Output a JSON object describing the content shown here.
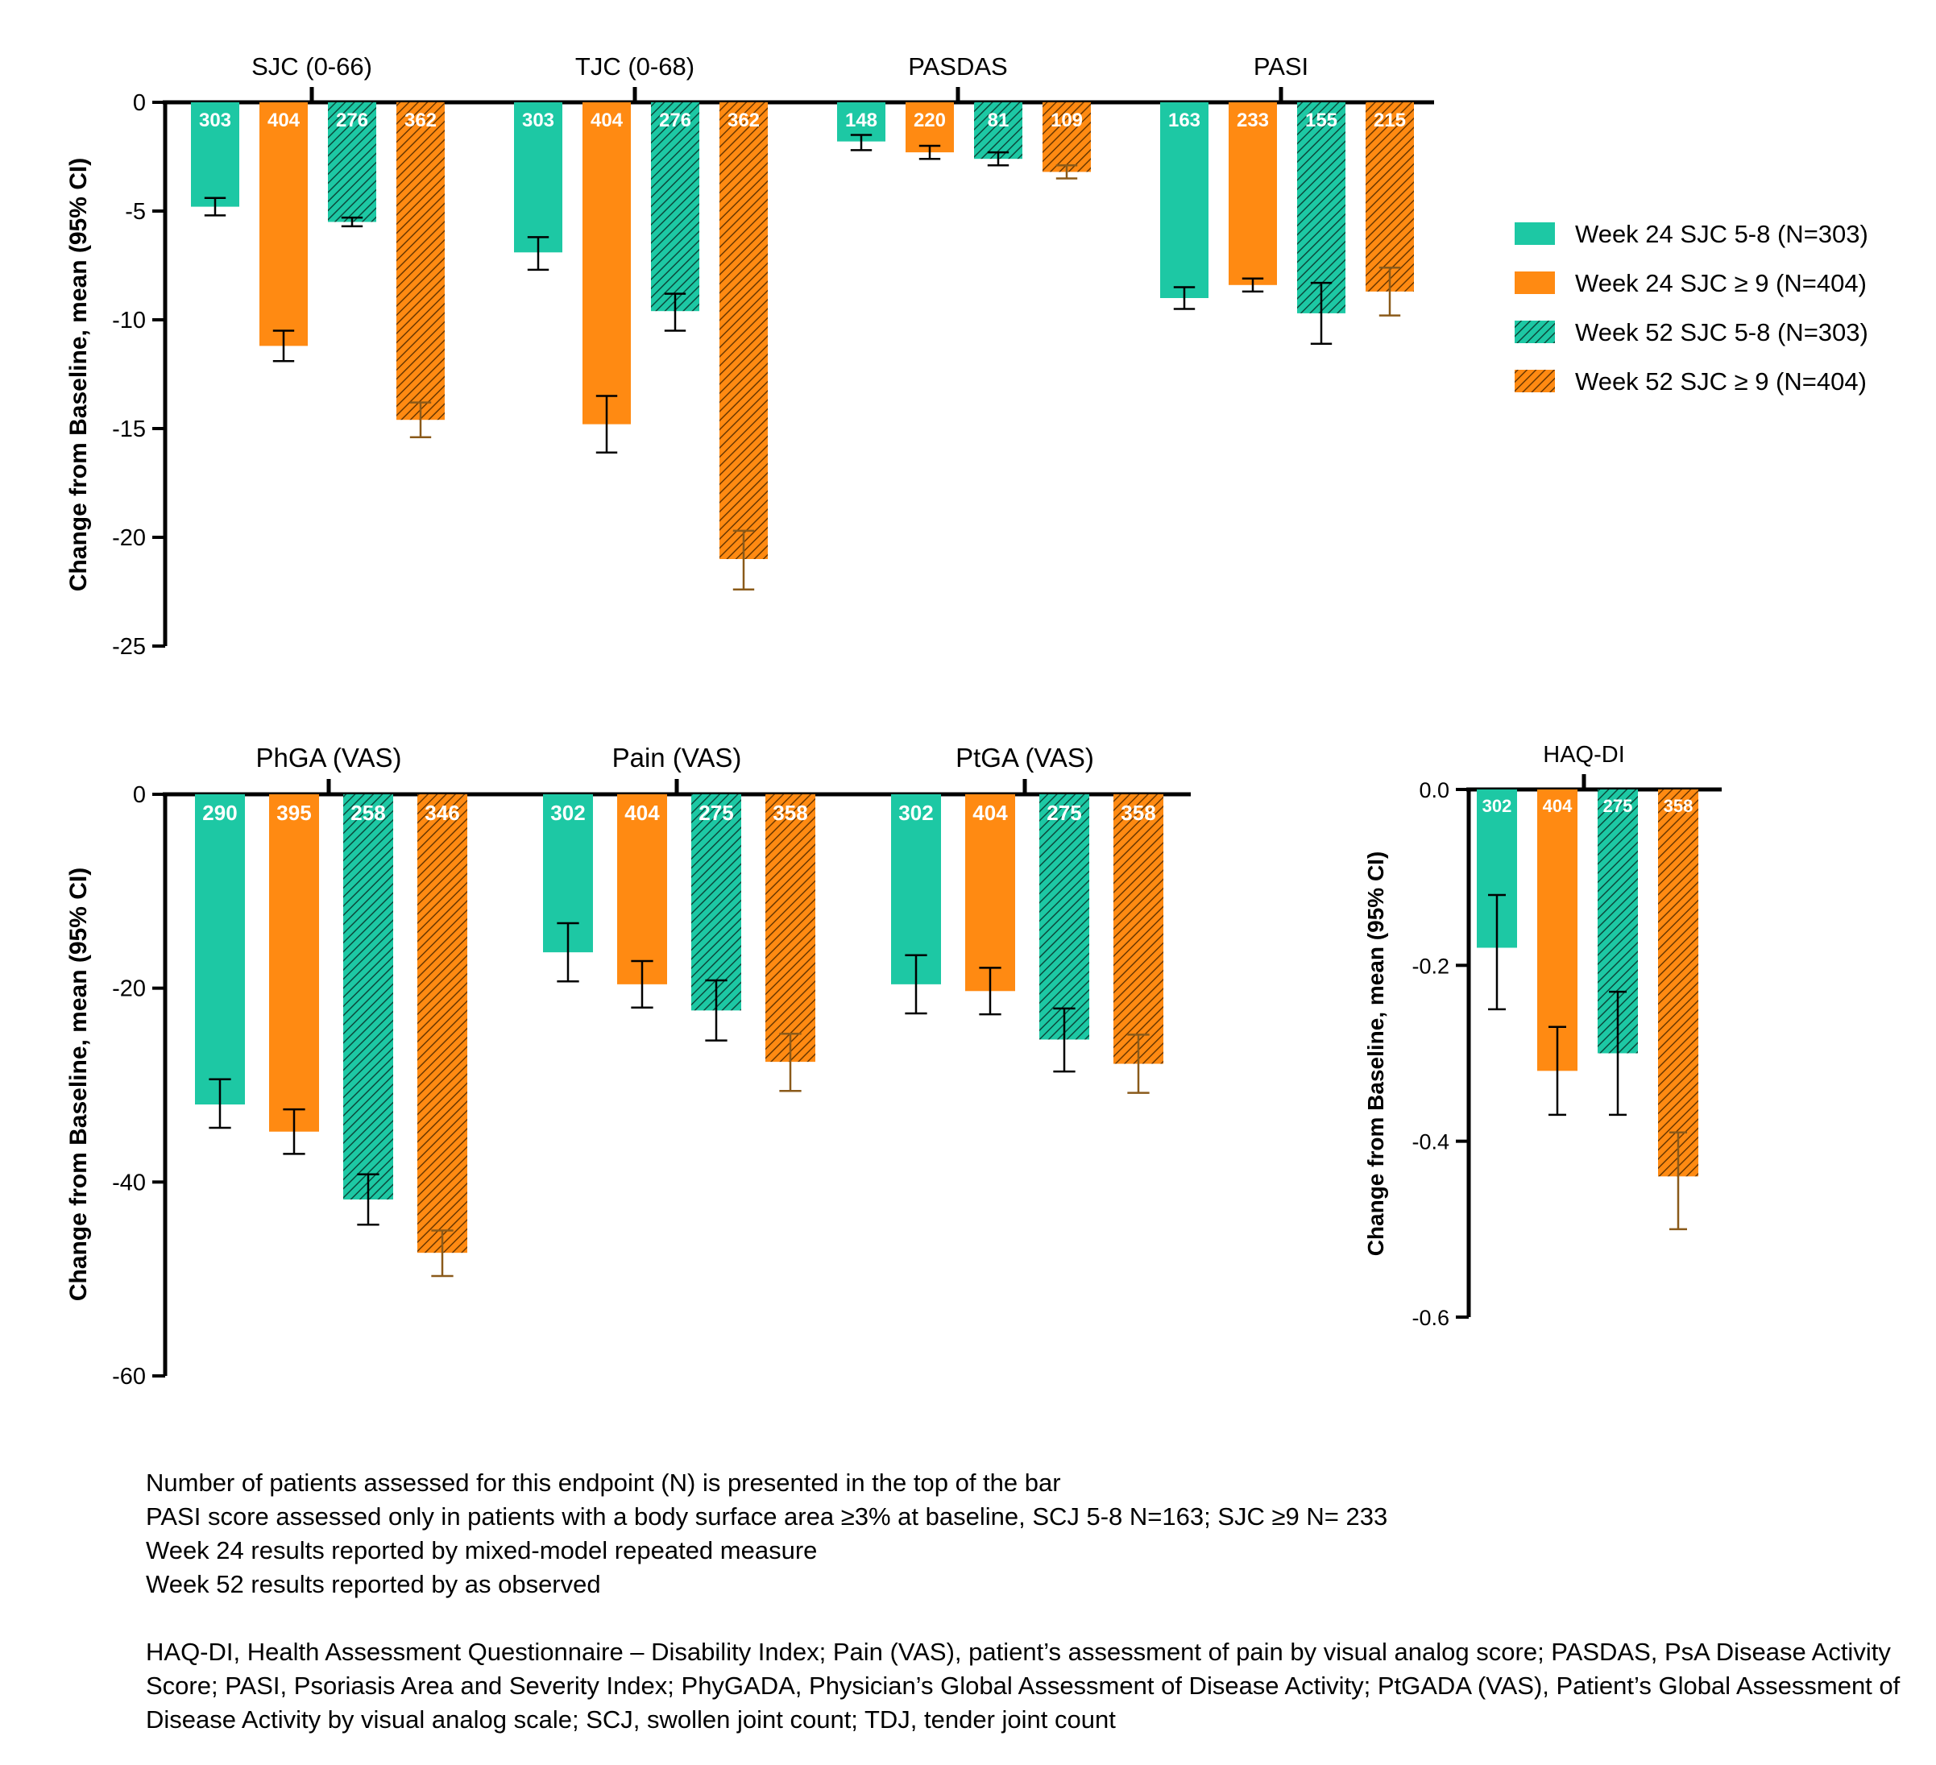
{
  "legend": [
    {
      "label": "Week 24 SJC 5-8 (N=303)",
      "color": "#1dc8a4",
      "hatched": false
    },
    {
      "label": "Week 24 SJC ≥ 9 (N=404)",
      "color": "#ff8a12",
      "hatched": false
    },
    {
      "label": "Week 52 SJC 5-8 (N=303)",
      "color": "#1dc8a4",
      "hatched": true
    },
    {
      "label": "Week 52 SJC ≥ 9 (N=404)",
      "color": "#ff8a12",
      "hatched": true
    }
  ],
  "colors": {
    "teal": "#1dc8a4",
    "orange": "#ff8a12",
    "teal_err": "#000000",
    "orange_err": "#8a5a1a"
  },
  "chart_data": [
    {
      "type": "bar",
      "ylabel": "Change from Baseline, mean  (95%  CI)",
      "ylim": [
        -25,
        0
      ],
      "yticks": [
        0,
        -5,
        -10,
        -15,
        -20,
        -25
      ],
      "ytick_labels": [
        "0",
        "-5",
        "-10",
        "-15",
        "-20",
        "-25"
      ],
      "groups": [
        {
          "name": "SJC (0-66)",
          "values": [
            -4.8,
            -11.2,
            -5.5,
            -14.6
          ],
          "ci_low": [
            -5.2,
            -11.9,
            -5.7,
            -15.4
          ],
          "ci_high": [
            -4.4,
            -10.5,
            -5.3,
            -13.8
          ],
          "n": [
            "303",
            "404",
            "276",
            "362"
          ]
        },
        {
          "name": "TJC (0-68)",
          "values": [
            -6.9,
            -14.8,
            -9.6,
            -21.0
          ],
          "ci_low": [
            -7.7,
            -16.1,
            -10.5,
            -22.4
          ],
          "ci_high": [
            -6.2,
            -13.5,
            -8.8,
            -19.7
          ],
          "n": [
            "303",
            "404",
            "276",
            "362"
          ]
        },
        {
          "name": "PASDAS",
          "values": [
            -1.8,
            -2.3,
            -2.6,
            -3.2
          ],
          "ci_low": [
            -2.2,
            -2.6,
            -2.9,
            -3.5
          ],
          "ci_high": [
            -1.5,
            -2.0,
            -2.3,
            -2.9
          ],
          "n": [
            "148",
            "220",
            "81",
            "109"
          ]
        },
        {
          "name": "PASI",
          "values": [
            -9.0,
            -8.4,
            -9.7,
            -8.7
          ],
          "ci_low": [
            -9.5,
            -8.7,
            -11.1,
            -9.8
          ],
          "ci_high": [
            -8.5,
            -8.1,
            -8.3,
            -7.6
          ],
          "n": [
            "163",
            "233",
            "155",
            "215"
          ]
        }
      ]
    },
    {
      "type": "bar",
      "ylabel": "Change from Baseline, mean  (95%  CI)",
      "ylim": [
        -60,
        0
      ],
      "yticks": [
        0,
        -20,
        -40,
        -60
      ],
      "ytick_labels": [
        "0",
        "-20",
        "-40",
        "-60"
      ],
      "groups": [
        {
          "name": "PhGA (VAS)",
          "values": [
            -32.0,
            -34.8,
            -41.8,
            -47.3
          ],
          "ci_low": [
            -34.4,
            -37.1,
            -44.4,
            -49.7
          ],
          "ci_high": [
            -29.4,
            -32.5,
            -39.2,
            -45.0
          ],
          "n": [
            "290",
            "395",
            "258",
            "346"
          ]
        },
        {
          "name": "Pain (VAS)",
          "values": [
            -16.3,
            -19.6,
            -22.3,
            -27.6
          ],
          "ci_low": [
            -19.3,
            -22.0,
            -25.4,
            -30.6
          ],
          "ci_high": [
            -13.3,
            -17.2,
            -19.2,
            -24.7
          ],
          "n": [
            "302",
            "404",
            "275",
            "358"
          ]
        },
        {
          "name": "PtGA (VAS)",
          "values": [
            -19.6,
            -20.3,
            -25.3,
            -27.8
          ],
          "ci_low": [
            -22.6,
            -22.7,
            -28.6,
            -30.8
          ],
          "ci_high": [
            -16.6,
            -17.9,
            -22.1,
            -24.8
          ],
          "n": [
            "302",
            "404",
            "275",
            "358"
          ]
        }
      ]
    },
    {
      "type": "bar",
      "ylabel": "Change from Baseline, mean  (95%  CI)",
      "ylim": [
        -0.6,
        0
      ],
      "yticks": [
        0,
        -0.2,
        -0.4,
        -0.6
      ],
      "ytick_labels": [
        "0.0",
        "-0.2",
        "-0.4",
        "-0.6"
      ],
      "groups": [
        {
          "name": "HAQ-DI",
          "values": [
            -0.18,
            -0.32,
            -0.3,
            -0.44
          ],
          "ci_low": [
            -0.25,
            -0.37,
            -0.37,
            -0.5
          ],
          "ci_high": [
            -0.12,
            -0.27,
            -0.23,
            -0.39
          ],
          "n": [
            "302",
            "404",
            "275",
            "358"
          ]
        }
      ]
    }
  ],
  "notes": [
    "Number of patients assessed for this endpoint (N) is presented in the top of the bar",
    "PASI score assessed only in patients with a body surface area ≥3% at baseline, SCJ 5-8 N=163; SJC ≥9 N= 233",
    "Week 24 results reported by mixed-model repeated measure",
    "Week 52 results reported by as observed"
  ],
  "abbreviations": "HAQ-DI, Health Assessment Questionnaire – Disability Index; Pain (VAS), patient’s assessment of pain by visual analog score; PASDAS, PsA Disease Activity Score; PASI, Psoriasis Area and Severity Index; PhyGADA, Physician’s Global Assessment of Disease Activity; PtGADA (VAS), Patient’s Global Assessment of Disease Activity by visual analog scale; SCJ, swollen joint count; TDJ, tender joint count"
}
